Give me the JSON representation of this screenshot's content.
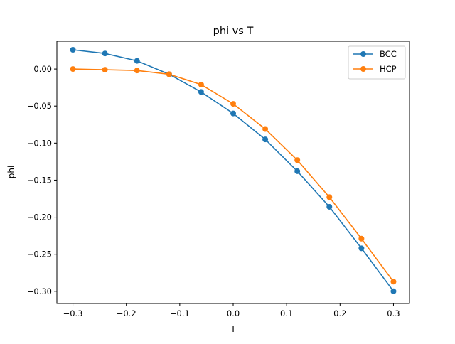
{
  "chart_data": {
    "type": "line",
    "title": "phi vs T",
    "xlabel": "T",
    "ylabel": "phi",
    "x": [
      -0.3,
      -0.24,
      -0.18,
      -0.12,
      -0.06,
      0.0,
      0.06,
      0.12,
      0.18,
      0.24,
      0.3
    ],
    "xlim": [
      -0.33,
      0.33
    ],
    "ylim": [
      -0.3165,
      0.0375
    ],
    "xticks": [
      -0.3,
      -0.2,
      -0.1,
      0.0,
      0.1,
      0.2,
      0.3
    ],
    "xtick_labels": [
      "−0.3",
      "−0.2",
      "−0.1",
      "0.0",
      "0.1",
      "0.2",
      "0.3"
    ],
    "yticks": [
      0.0,
      -0.05,
      -0.1,
      -0.15,
      -0.2,
      -0.25,
      -0.3
    ],
    "ytick_labels": [
      "0.00",
      "−0.05",
      "−0.10",
      "−0.15",
      "−0.20",
      "−0.25",
      "−0.30"
    ],
    "grid": false,
    "legend_position": "top-right",
    "series": [
      {
        "name": "BCC",
        "color": "#1f77b4",
        "marker": "circle",
        "values": [
          0.026,
          0.021,
          0.011,
          -0.007,
          -0.031,
          -0.06,
          -0.095,
          -0.138,
          -0.186,
          -0.242,
          -0.3
        ]
      },
      {
        "name": "HCP",
        "color": "#ff7f0e",
        "marker": "circle",
        "values": [
          0.0,
          -0.001,
          -0.002,
          -0.007,
          -0.021,
          -0.047,
          -0.081,
          -0.123,
          -0.173,
          -0.229,
          -0.287
        ]
      }
    ]
  }
}
